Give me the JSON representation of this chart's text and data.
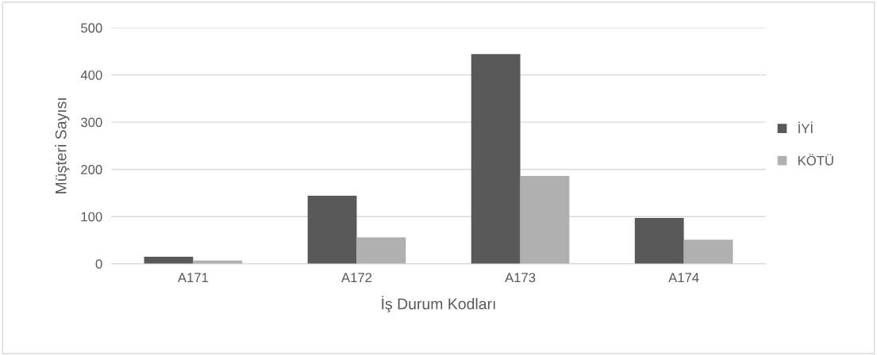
{
  "chart_data": {
    "type": "bar",
    "xlabel": "İş Durum Kodları",
    "ylabel": "Müşteri Sayısı",
    "categories": [
      "A171",
      "A172",
      "A173",
      "A174"
    ],
    "series": [
      {
        "name": "İYİ",
        "color": "#595959",
        "values": [
          15,
          144,
          444,
          97
        ]
      },
      {
        "name": "KÖTÜ",
        "color": "#b0b0b0",
        "values": [
          7,
          56,
          186,
          51
        ]
      }
    ],
    "ylim": [
      0,
      500
    ],
    "yticks": [
      0,
      100,
      200,
      300,
      400,
      500
    ],
    "grid": "y",
    "legend": "right"
  }
}
